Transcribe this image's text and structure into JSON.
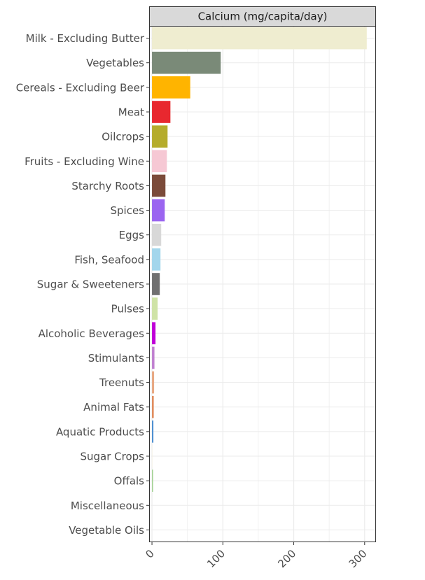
{
  "chart_data": {
    "type": "bar",
    "orientation": "horizontal",
    "title": "",
    "facet_label": "Calcium (mg/capita/day)",
    "xlabel": "",
    "ylabel": "",
    "xlim": [
      -4,
      316
    ],
    "x_ticks": [
      0,
      100,
      200,
      300
    ],
    "x_tick_labels": [
      "0",
      "100",
      "200",
      "300"
    ],
    "grid": true,
    "legend": "none",
    "categories": [
      "Milk - Excluding Butter",
      "Vegetables",
      "Cereals - Excluding Beer",
      "Meat",
      "Oilcrops",
      "Fruits - Excluding Wine",
      "Starchy Roots",
      "Spices",
      "Eggs",
      "Fish, Seafood",
      "Sugar & Sweeteners",
      "Pulses",
      "Alcoholic Beverages",
      "Stimulants",
      "Treenuts",
      "Animal Fats",
      "Aquatic Products",
      "Sugar Crops",
      "Offals",
      "Miscellaneous",
      "Vegetable Oils"
    ],
    "values": [
      303,
      97,
      54,
      26,
      22,
      21,
      19,
      18,
      13,
      12,
      11,
      8,
      5,
      3.5,
      3,
      2.5,
      2,
      0.5,
      1.5,
      0,
      0
    ],
    "colors": [
      "#efedd0",
      "#7a8a78",
      "#ffb400",
      "#e8282f",
      "#b5ac2c",
      "#f6c8d4",
      "#7b4b3a",
      "#9b65f0",
      "#d8d8d8",
      "#a3d6ec",
      "#707070",
      "#cfe3a6",
      "#c000d8",
      "#c080d0",
      "#e8a882",
      "#e08a5a",
      "#4a8ed0",
      "#f5f0e0",
      "#a0d090",
      "#ffffff",
      "#ffffff"
    ]
  }
}
